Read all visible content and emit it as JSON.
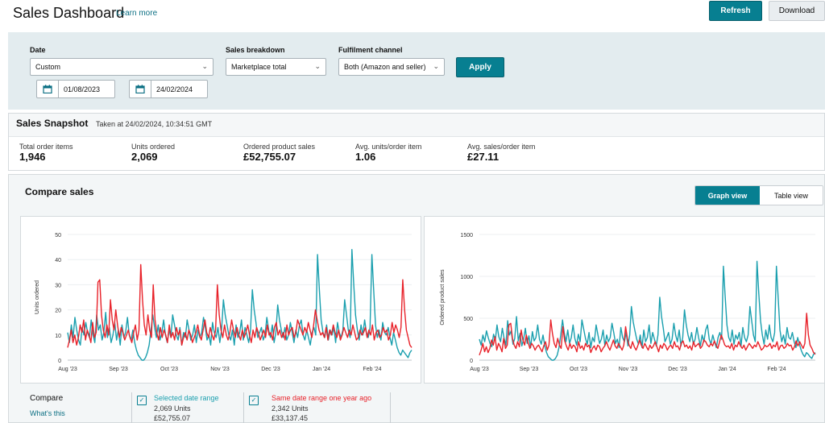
{
  "header": {
    "title": "Sales Dashboard",
    "learn_more": "Learn more",
    "refresh_label": "Refresh",
    "download_label": "Download"
  },
  "filters": {
    "date_label": "Date",
    "date_value": "Custom",
    "date_from": "01/08/2023",
    "date_to": "24/02/2024",
    "breakdown_label": "Sales breakdown",
    "breakdown_value": "Marketplace total",
    "channel_label": "Fulfilment channel",
    "channel_value": "Both (Amazon and seller)",
    "apply_label": "Apply"
  },
  "snapshot": {
    "title": "Sales Snapshot",
    "taken_at": "Taken at 24/02/2024, 10:34:51 GMT",
    "metrics": [
      {
        "label": "Total order items",
        "value": "1,946"
      },
      {
        "label": "Units ordered",
        "value": "2,069"
      },
      {
        "label": "Ordered product sales",
        "value": "£52,755.07"
      },
      {
        "label": "Avg. units/order item",
        "value": "1.06"
      },
      {
        "label": "Avg. sales/order item",
        "value": "£27.11"
      }
    ]
  },
  "compare": {
    "title": "Compare sales",
    "graph_view_label": "Graph view",
    "table_view_label": "Table view",
    "legend_title": "Compare",
    "whats_this": "What's this",
    "selected": {
      "label": "Selected date range",
      "units": "2,069 Units",
      "sales": "£52,755.07"
    },
    "last_year": {
      "label": "Same date range one year ago",
      "units": "2,342 Units",
      "sales": "£33,137.45"
    }
  },
  "colors": {
    "teal": "#1a9fae",
    "red": "#e8222a",
    "accent": "#077f91"
  },
  "chart_data": [
    {
      "type": "line",
      "ylabel": "Units ordered",
      "ylim": [
        0,
        50
      ],
      "yticks": [
        "0",
        "10",
        "20",
        "30",
        "40",
        "50"
      ],
      "xticks": [
        "Aug '23",
        "Sep '23",
        "Oct '23",
        "Nov '23",
        "Dec '23",
        "Jan '24",
        "Feb '24"
      ],
      "series": [
        {
          "name": "Selected date range",
          "color": "#1a9fae",
          "values": [
            11,
            7,
            14,
            9,
            17,
            12,
            8,
            6,
            13,
            10,
            15,
            11,
            9,
            16,
            10,
            7,
            18,
            12,
            14,
            8,
            11,
            19,
            9,
            13,
            7,
            10,
            15,
            8,
            12,
            6,
            14,
            9,
            11,
            17,
            10,
            8,
            12,
            7,
            4,
            2,
            1,
            0,
            0,
            1,
            3,
            6,
            12,
            18,
            13,
            9,
            14,
            8,
            11,
            16,
            10,
            7,
            12,
            9,
            18,
            14,
            10,
            8,
            13,
            6,
            11,
            9,
            16,
            12,
            8,
            10,
            14,
            7,
            12,
            9,
            11,
            17,
            13,
            8,
            10,
            6,
            15,
            11,
            9,
            13,
            7,
            12,
            24,
            18,
            14,
            10,
            8,
            12,
            6,
            14,
            9,
            11,
            16,
            8,
            13,
            10,
            7,
            12,
            28,
            20,
            15,
            9,
            11,
            13,
            8,
            10,
            17,
            12,
            9,
            14,
            7,
            11,
            22,
            16,
            12,
            9,
            13,
            8,
            10,
            15,
            11,
            7,
            12,
            9,
            14,
            16,
            10,
            8,
            12,
            9,
            6,
            11,
            13,
            10,
            42,
            28,
            16,
            11,
            9,
            14,
            8,
            12,
            10,
            13,
            7,
            15,
            11,
            9,
            12,
            24,
            18,
            12,
            9,
            44,
            30,
            18,
            12,
            8,
            14,
            10,
            16,
            11,
            9,
            13,
            42,
            28,
            14,
            9,
            12,
            8,
            15,
            11,
            10,
            13,
            9,
            6,
            11,
            8,
            5,
            3,
            2,
            4,
            3,
            2,
            1,
            3,
            4
          ]
        },
        {
          "name": "Same date range one year ago",
          "color": "#e8222a",
          "values": [
            5,
            8,
            12,
            7,
            10,
            6,
            9,
            14,
            11,
            16,
            8,
            12,
            10,
            7,
            15,
            9,
            11,
            31,
            32,
            18,
            12,
            9,
            14,
            10,
            24,
            16,
            12,
            20,
            14,
            9,
            13,
            11,
            8,
            10,
            12,
            9,
            7,
            11,
            14,
            8,
            12,
            38,
            24,
            14,
            10,
            18,
            12,
            9,
            30,
            16,
            11,
            8,
            13,
            9,
            12,
            10,
            7,
            14,
            9,
            11,
            8,
            13,
            10,
            12,
            6,
            9,
            11,
            8,
            12,
            10,
            7,
            9,
            11,
            14,
            10,
            8,
            12,
            16,
            11,
            9,
            13,
            10,
            8,
            12,
            30,
            18,
            12,
            9,
            14,
            10,
            8,
            11,
            16,
            12,
            9,
            13,
            10,
            8,
            12,
            9,
            11,
            14,
            10,
            7,
            12,
            9,
            13,
            11,
            8,
            10,
            12,
            9,
            14,
            10,
            11,
            8,
            13,
            15,
            10,
            12,
            9,
            11,
            8,
            14,
            10,
            12,
            13,
            9,
            11,
            16,
            14,
            12,
            10,
            13,
            11,
            15,
            12,
            9,
            14,
            20,
            16,
            12,
            10,
            11,
            9,
            13,
            8,
            12,
            10,
            14,
            11,
            9,
            12,
            8,
            10,
            13,
            11,
            9,
            12,
            10,
            14,
            11,
            8,
            9,
            12,
            10,
            11,
            13,
            9,
            12,
            10,
            14,
            8,
            11,
            12,
            9,
            10,
            13,
            11,
            12,
            8,
            10,
            15,
            11,
            14,
            12,
            9,
            13,
            32,
            20,
            12,
            9,
            6,
            5
          ]
        }
      ]
    },
    {
      "type": "line",
      "ylabel": "Ordered product sales",
      "ylim": [
        0,
        1500
      ],
      "yticks": [
        "0",
        "500",
        "1000",
        "1500"
      ],
      "xticks": [
        "Aug '23",
        "Sep '23",
        "Oct '23",
        "Nov '23",
        "Dec '23",
        "Jan '24",
        "Feb '24"
      ],
      "series": [
        {
          "name": "Selected date range",
          "color": "#1a9fae",
          "values": [
            250,
            180,
            300,
            220,
            350,
            270,
            200,
            160,
            310,
            240,
            420,
            280,
            220,
            380,
            260,
            180,
            470,
            300,
            350,
            190,
            260,
            520,
            230,
            320,
            170,
            250,
            380,
            200,
            290,
            150,
            340,
            230,
            270,
            420,
            250,
            190,
            300,
            170,
            90,
            40,
            20,
            0,
            0,
            20,
            60,
            150,
            300,
            480,
            330,
            220,
            360,
            200,
            270,
            420,
            260,
            180,
            310,
            220,
            480,
            370,
            260,
            190,
            330,
            150,
            270,
            220,
            420,
            310,
            200,
            250,
            360,
            170,
            300,
            220,
            270,
            440,
            330,
            200,
            250,
            150,
            390,
            270,
            220,
            330,
            170,
            300,
            640,
            460,
            350,
            250,
            190,
            300,
            150,
            360,
            220,
            270,
            420,
            200,
            330,
            250,
            170,
            300,
            750,
            520,
            380,
            220,
            270,
            330,
            190,
            250,
            440,
            300,
            220,
            360,
            170,
            270,
            600,
            420,
            300,
            220,
            330,
            190,
            250,
            390,
            270,
            170,
            300,
            220,
            360,
            420,
            250,
            190,
            300,
            220,
            150,
            270,
            330,
            250,
            1120,
            760,
            420,
            270,
            220,
            360,
            190,
            300,
            250,
            330,
            170,
            390,
            270,
            220,
            300,
            640,
            470,
            300,
            220,
            1180,
            800,
            470,
            300,
            190,
            360,
            250,
            420,
            270,
            220,
            330,
            1120,
            740,
            360,
            220,
            300,
            190,
            390,
            270,
            250,
            330,
            220,
            150,
            270,
            190,
            120,
            70,
            40,
            90,
            70,
            40,
            20,
            70,
            90
          ]
        },
        {
          "name": "Same date range one year ago",
          "color": "#e8222a",
          "values": [
            60,
            120,
            200,
            100,
            160,
            90,
            140,
            240,
            180,
            280,
            120,
            200,
            160,
            100,
            260,
            140,
            180,
            420,
            440,
            260,
            180,
            140,
            220,
            160,
            360,
            240,
            180,
            300,
            210,
            140,
            200,
            170,
            120,
            160,
            180,
            140,
            100,
            170,
            220,
            120,
            180,
            480,
            320,
            200,
            150,
            260,
            180,
            140,
            400,
            230,
            170,
            120,
            200,
            140,
            180,
            160,
            100,
            220,
            140,
            170,
            120,
            200,
            160,
            180,
            90,
            140,
            170,
            120,
            180,
            160,
            100,
            140,
            170,
            220,
            160,
            120,
            180,
            240,
            170,
            140,
            200,
            160,
            120,
            180,
            400,
            260,
            180,
            140,
            220,
            160,
            120,
            170,
            240,
            180,
            140,
            200,
            160,
            120,
            180,
            140,
            170,
            220,
            160,
            100,
            180,
            140,
            200,
            170,
            120,
            160,
            180,
            140,
            220,
            160,
            170,
            120,
            200,
            230,
            160,
            180,
            140,
            170,
            120,
            220,
            160,
            180,
            200,
            140,
            170,
            240,
            220,
            180,
            160,
            200,
            170,
            230,
            180,
            140,
            220,
            300,
            240,
            180,
            160,
            170,
            140,
            200,
            120,
            180,
            160,
            220,
            170,
            140,
            180,
            120,
            160,
            200,
            170,
            140,
            180,
            160,
            220,
            170,
            120,
            140,
            180,
            160,
            170,
            200,
            140,
            180,
            160,
            220,
            120,
            170,
            180,
            140,
            160,
            200,
            170,
            180,
            120,
            160,
            230,
            170,
            220,
            180,
            140,
            200,
            560,
            300,
            180,
            140,
            90,
            70
          ]
        }
      ]
    }
  ]
}
